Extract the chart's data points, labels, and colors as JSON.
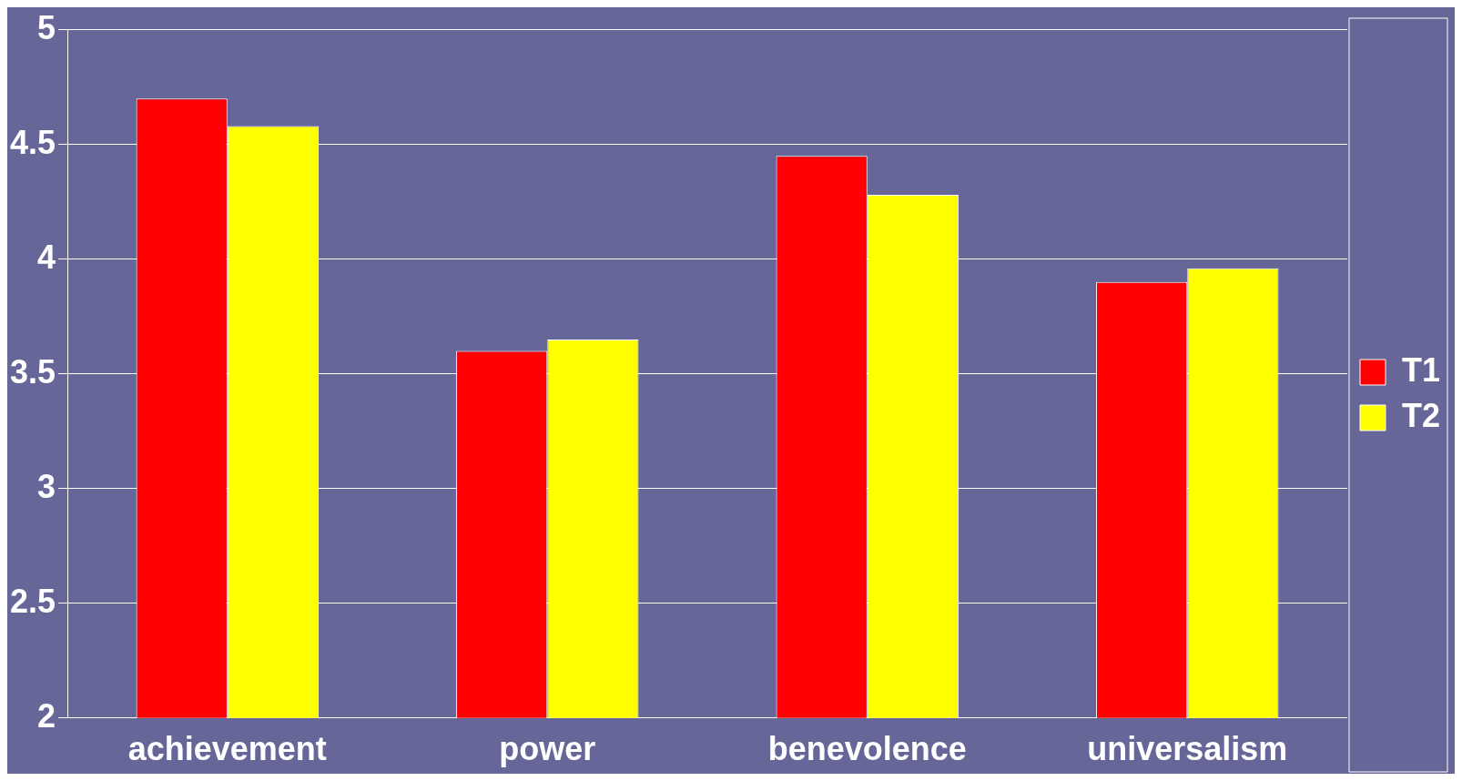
{
  "chart_data": {
    "type": "bar",
    "categories": [
      "achievement",
      "power",
      "benevolence",
      "universalism"
    ],
    "series": [
      {
        "name": "T1",
        "color": "#ff0000",
        "values": [
          4.7,
          3.6,
          4.45,
          3.9
        ]
      },
      {
        "name": "T2",
        "color": "#ffff00",
        "values": [
          4.58,
          3.65,
          4.28,
          3.96
        ]
      }
    ],
    "ylim": [
      2,
      5
    ],
    "yticks": [
      2,
      2.5,
      3,
      3.5,
      4,
      4.5,
      5
    ],
    "grid": "y",
    "legend": "right"
  }
}
